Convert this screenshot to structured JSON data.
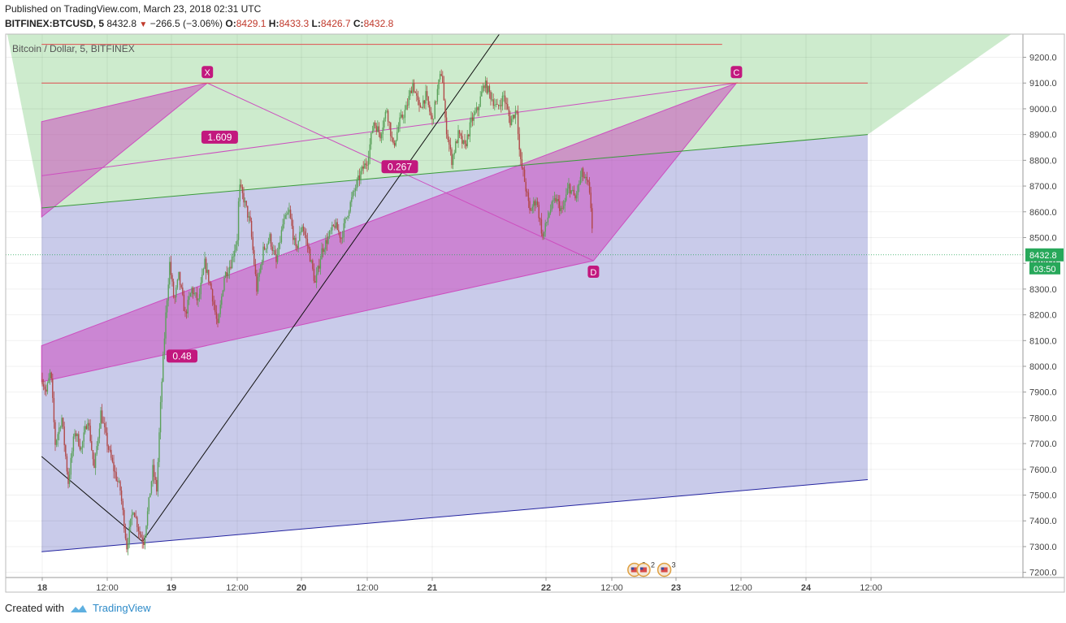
{
  "header": {
    "published": "Published on TradingView.com, March 23, 2018 02:31 UTC",
    "symbol": "BITFINEX:BTCUSD, 5",
    "last": "8432.8",
    "change": "−266.5 (−3.06%)",
    "o_label": "O:",
    "o": "8429.1",
    "h_label": "H:",
    "h": "8433.3",
    "l_label": "L:",
    "l": "8426.7",
    "c_label": "C:",
    "c": "8432.8"
  },
  "footer": {
    "created": "Created with",
    "brand": "TradingView",
    "brand_icon": "tradingview-cloud-icon"
  },
  "colors": {
    "green_zone": "#cdebcd",
    "blue_zone": "#c9cbea",
    "pattern": "#cc4fbf",
    "pattern_label": "#c2187e",
    "red_line": "#e05050",
    "price_tag": "#27a85a"
  },
  "chart_data": {
    "type": "candlestick",
    "subtitle": "Bitcoin / Dollar, 5, BITFINEX",
    "ylim": [
      7180,
      9290
    ],
    "y_ticks": [
      7200,
      7300,
      7400,
      7500,
      7600,
      7700,
      7800,
      7900,
      8000,
      8100,
      8200,
      8300,
      8400,
      8500,
      8600,
      8700,
      8800,
      8900,
      9000,
      9100,
      9200
    ],
    "y_tick_labels": [
      "7200.0",
      "7300.0",
      "7400.0",
      "7500.0",
      "7600.0",
      "7700.0",
      "7800.0",
      "7900.0",
      "8000.0",
      "8100.0",
      "8200.0",
      "8300.0",
      "8400.0",
      "8500.0",
      "8600.0",
      "8700.0",
      "8800.0",
      "8900.0",
      "9000.0",
      "9100.0",
      "9200.0"
    ],
    "x_ticks": [
      "18",
      "12:00",
      "19",
      "12:00",
      "20",
      "12:00",
      "21",
      "22",
      "12:00",
      "23",
      "12:00",
      "24",
      "12:00"
    ],
    "last_price": "8432.8",
    "countdown": "03:50",
    "price_path": [
      [
        0,
        7950
      ],
      [
        0.6,
        7900
      ],
      [
        1.3,
        7980
      ],
      [
        2,
        7700
      ],
      [
        3,
        7800
      ],
      [
        4,
        7550
      ],
      [
        5,
        7750
      ],
      [
        6,
        7680
      ],
      [
        7,
        7800
      ],
      [
        8,
        7600
      ],
      [
        9,
        7820
      ],
      [
        10,
        7700
      ],
      [
        11,
        7600
      ],
      [
        12,
        7520
      ],
      [
        13,
        7300
      ],
      [
        14,
        7450
      ],
      [
        15,
        7350
      ],
      [
        15.6,
        7320
      ],
      [
        16.3,
        7450
      ],
      [
        17,
        7600
      ],
      [
        17.6,
        7520
      ],
      [
        18.3,
        7900
      ],
      [
        19,
        8200
      ],
      [
        19.6,
        8400
      ],
      [
        20.3,
        8250
      ],
      [
        21,
        8350
      ],
      [
        22,
        8200
      ],
      [
        23,
        8300
      ],
      [
        24,
        8250
      ],
      [
        25,
        8400
      ],
      [
        26,
        8300
      ],
      [
        27,
        8150
      ],
      [
        28,
        8350
      ],
      [
        29,
        8400
      ],
      [
        30,
        8500
      ],
      [
        30.3,
        8700
      ],
      [
        31,
        8650
      ],
      [
        32,
        8550
      ],
      [
        33,
        8300
      ],
      [
        34,
        8450
      ],
      [
        35,
        8500
      ],
      [
        36,
        8400
      ],
      [
        37,
        8550
      ],
      [
        38,
        8600
      ],
      [
        39,
        8450
      ],
      [
        40,
        8550
      ],
      [
        41,
        8450
      ],
      [
        42,
        8320
      ],
      [
        43,
        8450
      ],
      [
        44,
        8500
      ],
      [
        45,
        8550
      ],
      [
        46,
        8500
      ],
      [
        47,
        8600
      ],
      [
        48,
        8680
      ],
      [
        49,
        8750
      ],
      [
        50,
        8800
      ],
      [
        51,
        8950
      ],
      [
        52,
        8900
      ],
      [
        53,
        9000
      ],
      [
        54,
        8850
      ],
      [
        55,
        8950
      ],
      [
        56,
        9000
      ],
      [
        57,
        9100
      ],
      [
        58,
        9000
      ],
      [
        59,
        9050
      ],
      [
        60,
        8950
      ],
      [
        61,
        9100
      ],
      [
        61.5,
        9150
      ],
      [
        62,
        8950
      ],
      [
        63,
        8800
      ],
      [
        64,
        8900
      ],
      [
        65,
        8850
      ],
      [
        66,
        8950
      ],
      [
        67,
        9000
      ],
      [
        68,
        9100
      ],
      [
        69,
        9050
      ],
      [
        70,
        9000
      ],
      [
        71,
        9050
      ],
      [
        72,
        8950
      ],
      [
        73,
        9000
      ],
      [
        73.5,
        8800
      ],
      [
        74,
        8750
      ],
      [
        75,
        8600
      ],
      [
        76,
        8650
      ],
      [
        77,
        8500
      ],
      [
        78,
        8600
      ],
      [
        79,
        8650
      ],
      [
        80,
        8600
      ],
      [
        81,
        8700
      ],
      [
        82,
        8650
      ],
      [
        83,
        8750
      ],
      [
        84,
        8700
      ],
      [
        84.5,
        8600
      ],
      [
        84.8,
        8432.8
      ]
    ],
    "trend_lines": [
      {
        "name": "green-channel-line",
        "color": "#3a9a3a",
        "from": [
          -0.1,
          8615
        ],
        "to": [
          127,
          8900
        ]
      },
      {
        "name": "blue-channel-line",
        "color": "#2424a0",
        "from": [
          -0.1,
          7280
        ],
        "to": [
          127,
          7560
        ]
      },
      {
        "name": "red-level-upper",
        "color": "#e05050",
        "from": [
          -0.1,
          9250
        ],
        "to": [
          104.6,
          9250
        ]
      },
      {
        "name": "red-level-c",
        "color": "#e05050",
        "from": [
          -0.1,
          9100
        ],
        "to": [
          127,
          9100
        ]
      },
      {
        "name": "black-trend-rising",
        "color": "#111111",
        "from": [
          15.4,
          7320
        ],
        "to": [
          70.6,
          9300
        ]
      },
      {
        "name": "black-trend-falling",
        "color": "#111111",
        "from": [
          -0.1,
          7650
        ],
        "to": [
          15.4,
          7320
        ]
      }
    ],
    "harmonic": {
      "points": {
        "X": [
          25.4,
          9100
        ],
        "C": [
          106.8,
          9100
        ],
        "D": [
          84.8,
          8410
        ]
      },
      "fills": [
        [
          [
            -0.1,
            8580
          ],
          [
            -0.1,
            8950
          ],
          [
            25.4,
            9100
          ]
        ],
        [
          [
            -0.1,
            7940
          ],
          [
            -0.1,
            8080
          ],
          [
            106.8,
            9100
          ],
          [
            84.8,
            8410
          ]
        ]
      ],
      "lines": [
        [
          [
            -0.1,
            8740
          ],
          [
            106.8,
            9100
          ]
        ],
        [
          [
            25.4,
            9100
          ],
          [
            84.8,
            8410
          ]
        ]
      ],
      "ratios": [
        {
          "label": "1.609",
          "at": [
            27.3,
            8890
          ]
        },
        {
          "label": "0.267",
          "at": [
            55,
            8775
          ]
        },
        {
          "label": "0.48",
          "at": [
            21.5,
            8040
          ]
        }
      ]
    },
    "event_badges": [
      {
        "icon": "us-flag-icon",
        "count": "2",
        "at": [
          91.1,
          7210
        ]
      },
      {
        "icon": "us-flag-icon",
        "count": "2",
        "at": [
          92.5,
          7210
        ]
      },
      {
        "icon": "us-flag-icon",
        "count": "3",
        "at": [
          95.7,
          7210
        ]
      }
    ]
  }
}
